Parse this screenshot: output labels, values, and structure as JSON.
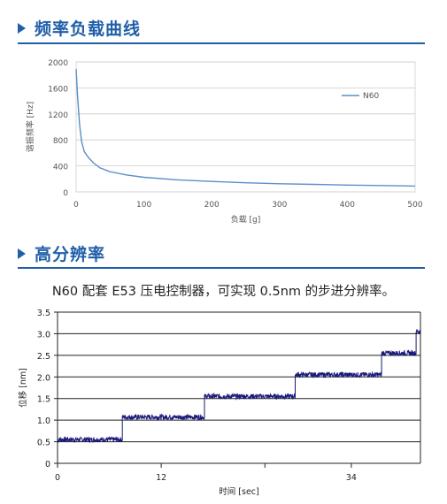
{
  "section1": {
    "title": "频率负载曲线"
  },
  "section2": {
    "title": "高分辨率"
  },
  "note": "N60 配套 E53 压电控制器，可实现 0.5nm 的步进分辨率。",
  "colors": {
    "accent": "#1f5fa8",
    "line1": "#5b8fc9",
    "line2": "#1a1a7a",
    "grid": "#cccccc"
  },
  "icons": {
    "section_marker": "triangle-right-icon"
  },
  "chart_data": [
    {
      "type": "line",
      "xlabel": "负载 [g]",
      "ylabel": "谐振频率 [Hz]",
      "xlim": [
        0,
        500
      ],
      "ylim": [
        0,
        2000
      ],
      "xticks": [
        0,
        100,
        200,
        300,
        400,
        500
      ],
      "yticks": [
        0,
        400,
        800,
        1200,
        1600,
        2000
      ],
      "grid": "horizontal",
      "legend": "right",
      "series": [
        {
          "name": "N60",
          "x": [
            0,
            2,
            5,
            8,
            12,
            18,
            25,
            35,
            50,
            75,
            100,
            150,
            200,
            250,
            300,
            350,
            400,
            450,
            500
          ],
          "y": [
            1890,
            1500,
            1050,
            780,
            620,
            530,
            450,
            370,
            310,
            260,
            225,
            185,
            160,
            140,
            125,
            115,
            105,
            98,
            90
          ]
        }
      ]
    },
    {
      "type": "line",
      "xlabel": "时间 [sec]",
      "ylabel": "位移 [nm]",
      "xlim": [
        0,
        42
      ],
      "ylim": [
        0,
        3.5
      ],
      "xticks": [
        0,
        12,
        24,
        34
      ],
      "xticklabels": [
        "0",
        "12",
        "",
        "34"
      ],
      "yticks": [
        0,
        0.5,
        1.0,
        1.5,
        2.0,
        2.5,
        3.0,
        3.5
      ],
      "yticklabels": [
        "0",
        "0.5",
        "1.0",
        "1.5",
        "2.0",
        "2.5",
        "3.0",
        "3.5"
      ],
      "grid": "horizontal",
      "series": [
        {
          "steps": [
            {
              "x0": 0,
              "x1": 7.5,
              "y": 0.55
            },
            {
              "x0": 7.5,
              "x1": 17,
              "y": 1.07
            },
            {
              "x0": 17,
              "x1": 27.5,
              "y": 1.55
            },
            {
              "x0": 27.5,
              "x1": 37.5,
              "y": 2.05
            },
            {
              "x0": 37.5,
              "x1": 41.5,
              "y": 2.55
            },
            {
              "x0": 41.5,
              "x1": 42,
              "y": 3.05
            }
          ],
          "noise": 0.06
        }
      ]
    }
  ]
}
